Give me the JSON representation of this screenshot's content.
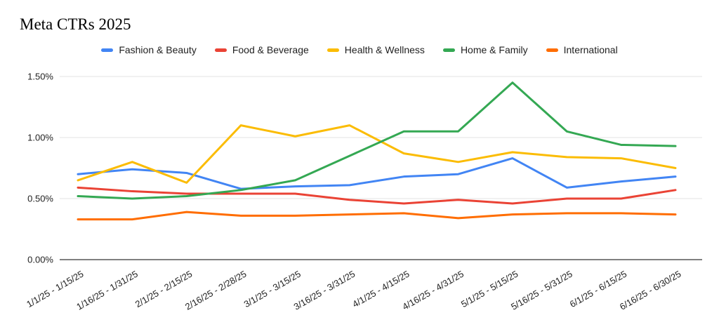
{
  "title": "Meta CTRs 2025",
  "chart_data": {
    "type": "line",
    "title": "Meta CTRs 2025",
    "categories": [
      "1/1/25 - 1/15/25",
      "1/16/25 - 1/31/25",
      "2/1/25 - 2/15/25",
      "2/16/25 - 2/28/25",
      "3/1/25 - 3/15/25",
      "3/16/25 - 3/31/25",
      "4/1/25 - 4/15/25",
      "4/16/25 - 4/31/25",
      "5/1/25 - 5/15/25",
      "5/16/25 - 5/31/25",
      "6/1/25 - 6/15/25",
      "6/16/25 - 6/30/25"
    ],
    "series": [
      {
        "name": "Fashion & Beauty",
        "color": "#4285F4",
        "values": [
          0.7,
          0.74,
          0.71,
          0.58,
          0.6,
          0.61,
          0.68,
          0.7,
          0.83,
          0.59,
          0.64,
          0.68
        ]
      },
      {
        "name": "Food & Beverage",
        "color": "#EA4335",
        "values": [
          0.59,
          0.56,
          0.54,
          0.54,
          0.54,
          0.49,
          0.46,
          0.49,
          0.46,
          0.5,
          0.5,
          0.57
        ]
      },
      {
        "name": "Health & Wellness",
        "color": "#FBBC04",
        "values": [
          0.65,
          0.8,
          0.63,
          1.1,
          1.01,
          1.1,
          0.87,
          0.8,
          0.88,
          0.84,
          0.83,
          0.75
        ]
      },
      {
        "name": "Home & Family",
        "color": "#34A853",
        "values": [
          0.52,
          0.5,
          0.52,
          0.57,
          0.65,
          0.85,
          1.05,
          1.05,
          1.45,
          1.05,
          0.94,
          0.93
        ]
      },
      {
        "name": "International",
        "color": "#FF6D01",
        "values": [
          0.33,
          0.33,
          0.39,
          0.36,
          0.36,
          0.37,
          0.38,
          0.34,
          0.37,
          0.38,
          0.38,
          0.37
        ]
      }
    ],
    "xlabel": "",
    "ylabel": "",
    "ylim": [
      0,
      1.5
    ],
    "yticks": [
      {
        "label": "0.00%",
        "value": 0.0
      },
      {
        "label": "0.50%",
        "value": 0.5
      },
      {
        "label": "1.00%",
        "value": 1.0
      },
      {
        "label": "1.50%",
        "value": 1.5
      }
    ],
    "grid": "horizontal",
    "legend_position": "top",
    "x_label_angle_deg": -30,
    "gridline_color": "#e3e3e3",
    "baseline_color": "#808080",
    "tick_label_color": "#1f1f1f"
  }
}
